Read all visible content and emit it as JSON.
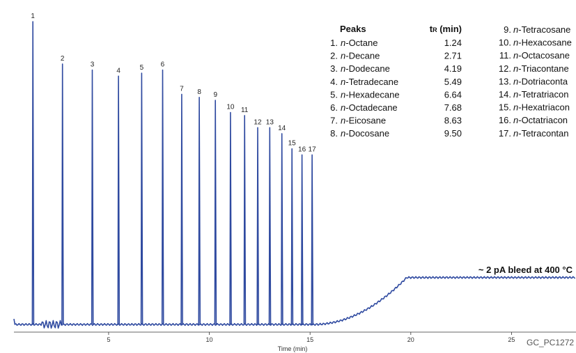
{
  "chart_data": {
    "type": "line",
    "code": "GC_PC1272",
    "xlabel": "Time (min)",
    "ylabel": "",
    "xlim": [
      0.3,
      28.2
    ],
    "ticks": [
      5,
      10,
      15,
      20,
      25
    ],
    "annotation": "~ 2 pA bleed at 400 °C",
    "line_color": "#2f4aa0",
    "baseline_level": 0.0,
    "bleed": {
      "rise_start": 15.2,
      "plateau_start": 19.8,
      "plateau_level": 0.155,
      "plateau_end": 28.2
    },
    "peaks": [
      {
        "n": "1",
        "name": "n-Octane",
        "tr": 1.24,
        "height": 1.0
      },
      {
        "n": "2",
        "name": "n-Decane",
        "tr": 2.71,
        "height": 0.86
      },
      {
        "n": "3",
        "name": "n-Dodecane",
        "tr": 4.19,
        "height": 0.84
      },
      {
        "n": "4",
        "name": "n-Tetradecane",
        "tr": 5.49,
        "height": 0.82
      },
      {
        "n": "5",
        "name": "n-Hexadecane",
        "tr": 6.64,
        "height": 0.83
      },
      {
        "n": "6",
        "name": "n-Octadecane",
        "tr": 7.68,
        "height": 0.84
      },
      {
        "n": "7",
        "name": "n-Eicosane",
        "tr": 8.63,
        "height": 0.76
      },
      {
        "n": "8",
        "name": "n-Docosane",
        "tr": 9.5,
        "height": 0.75
      },
      {
        "n": "9",
        "name": "n-Tetracosane",
        "tr": 10.3,
        "height": 0.74
      },
      {
        "n": "10",
        "name": "n-Hexacosane",
        "tr": 11.05,
        "height": 0.7
      },
      {
        "n": "11",
        "name": "n-Octacosane",
        "tr": 11.75,
        "height": 0.69
      },
      {
        "n": "12",
        "name": "n-Triacontane",
        "tr": 12.4,
        "height": 0.65
      },
      {
        "n": "13",
        "name": "n-Dotriaconta",
        "tr": 13.0,
        "height": 0.65
      },
      {
        "n": "14",
        "name": "n-Tetratriacon",
        "tr": 13.6,
        "height": 0.63
      },
      {
        "n": "15",
        "name": "n-Hexatriacon",
        "tr": 14.1,
        "height": 0.58
      },
      {
        "n": "16",
        "name": "n-Octatriacon",
        "tr": 14.6,
        "height": 0.56
      },
      {
        "n": "17",
        "name": "n-Tetracontan",
        "tr": 15.1,
        "height": 0.56
      }
    ],
    "table": {
      "col_peaks": "Peaks",
      "col_tr_main": "t",
      "col_tr_sub": "R",
      "col_tr_unit": " (min)",
      "left_rows": [
        {
          "idx": "1.",
          "prefix": "n",
          "rest": "-Octane",
          "tr": "1.24"
        },
        {
          "idx": "2.",
          "prefix": "n",
          "rest": "-Decane",
          "tr": "2.71"
        },
        {
          "idx": "3.",
          "prefix": "n",
          "rest": "-Dodecane",
          "tr": "4.19"
        },
        {
          "idx": "4.",
          "prefix": "n",
          "rest": "-Tetradecane",
          "tr": "5.49"
        },
        {
          "idx": "5.",
          "prefix": "n",
          "rest": "-Hexadecane",
          "tr": "6.64"
        },
        {
          "idx": "6.",
          "prefix": "n",
          "rest": "-Octadecane",
          "tr": "7.68"
        },
        {
          "idx": "7.",
          "prefix": "n",
          "rest": "-Eicosane",
          "tr": "8.63"
        },
        {
          "idx": "8.",
          "prefix": "n",
          "rest": "-Docosane",
          "tr": "9.50"
        }
      ],
      "right_rows": [
        {
          "idx": "9.",
          "prefix": "n",
          "rest": "-Tetracosane"
        },
        {
          "idx": "10.",
          "prefix": "n",
          "rest": "-Hexacosane"
        },
        {
          "idx": "11.",
          "prefix": "n",
          "rest": "-Octacosane"
        },
        {
          "idx": "12.",
          "prefix": "n",
          "rest": "-Triacontane"
        },
        {
          "idx": "13.",
          "prefix": "n",
          "rest": "-Dotriaconta"
        },
        {
          "idx": "14.",
          "prefix": "n",
          "rest": "-Tetratriacon"
        },
        {
          "idx": "15.",
          "prefix": "n",
          "rest": "-Hexatriacon"
        },
        {
          "idx": "16.",
          "prefix": "n",
          "rest": "-Octatriacon"
        },
        {
          "idx": "17.",
          "prefix": "n",
          "rest": "-Tetracontan"
        }
      ]
    }
  }
}
